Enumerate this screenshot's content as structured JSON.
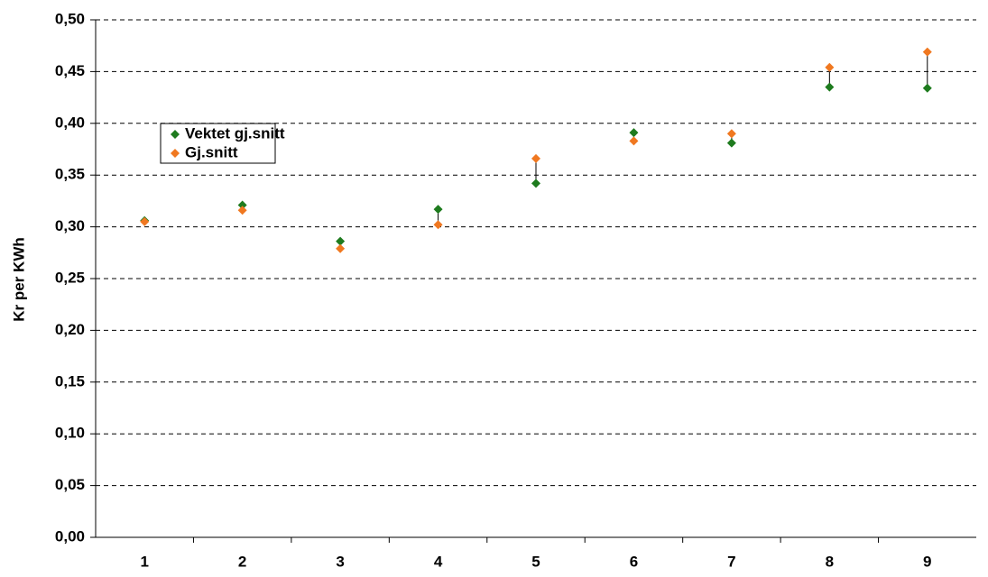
{
  "chart_data": {
    "type": "dot",
    "y_label": "Kr per KWh",
    "categories": [
      "1",
      "2",
      "3",
      "4",
      "5",
      "6",
      "7",
      "8",
      "9"
    ],
    "series": [
      {
        "name": "Vektet gj.snitt",
        "color": "#1e7b1e",
        "values": [
          0.306,
          0.321,
          0.286,
          0.317,
          0.342,
          0.391,
          0.381,
          0.435,
          0.434
        ]
      },
      {
        "name": "Gj.snitt",
        "color": "#f07820",
        "values": [
          0.305,
          0.316,
          0.279,
          0.302,
          0.366,
          0.383,
          0.39,
          0.454,
          0.469
        ]
      }
    ],
    "ylim": [
      0,
      0.5
    ],
    "yticks": [
      {
        "value": 0,
        "label": "0,00"
      },
      {
        "value": 0.05,
        "label": "0,05"
      },
      {
        "value": 0.1,
        "label": "0,10"
      },
      {
        "value": 0.15,
        "label": "0,15"
      },
      {
        "value": 0.2,
        "label": "0,20"
      },
      {
        "value": 0.25,
        "label": "0,25"
      },
      {
        "value": 0.3,
        "label": "0,30"
      },
      {
        "value": 0.35,
        "label": "0,35"
      },
      {
        "value": 0.4,
        "label": "0,40"
      },
      {
        "value": 0.45,
        "label": "0,45"
      },
      {
        "value": 0.5,
        "label": "0,50"
      }
    ],
    "grid": true,
    "legend": "upper-left"
  }
}
